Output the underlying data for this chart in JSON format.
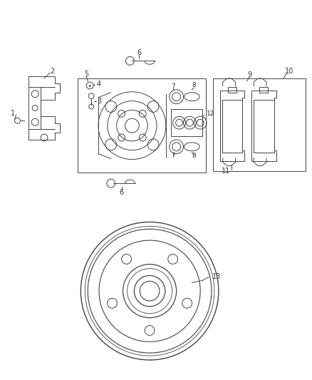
{
  "bg_color": "#ffffff",
  "lc": "#444444",
  "fig_width": 4.38,
  "fig_height": 5.33,
  "dpi": 100
}
